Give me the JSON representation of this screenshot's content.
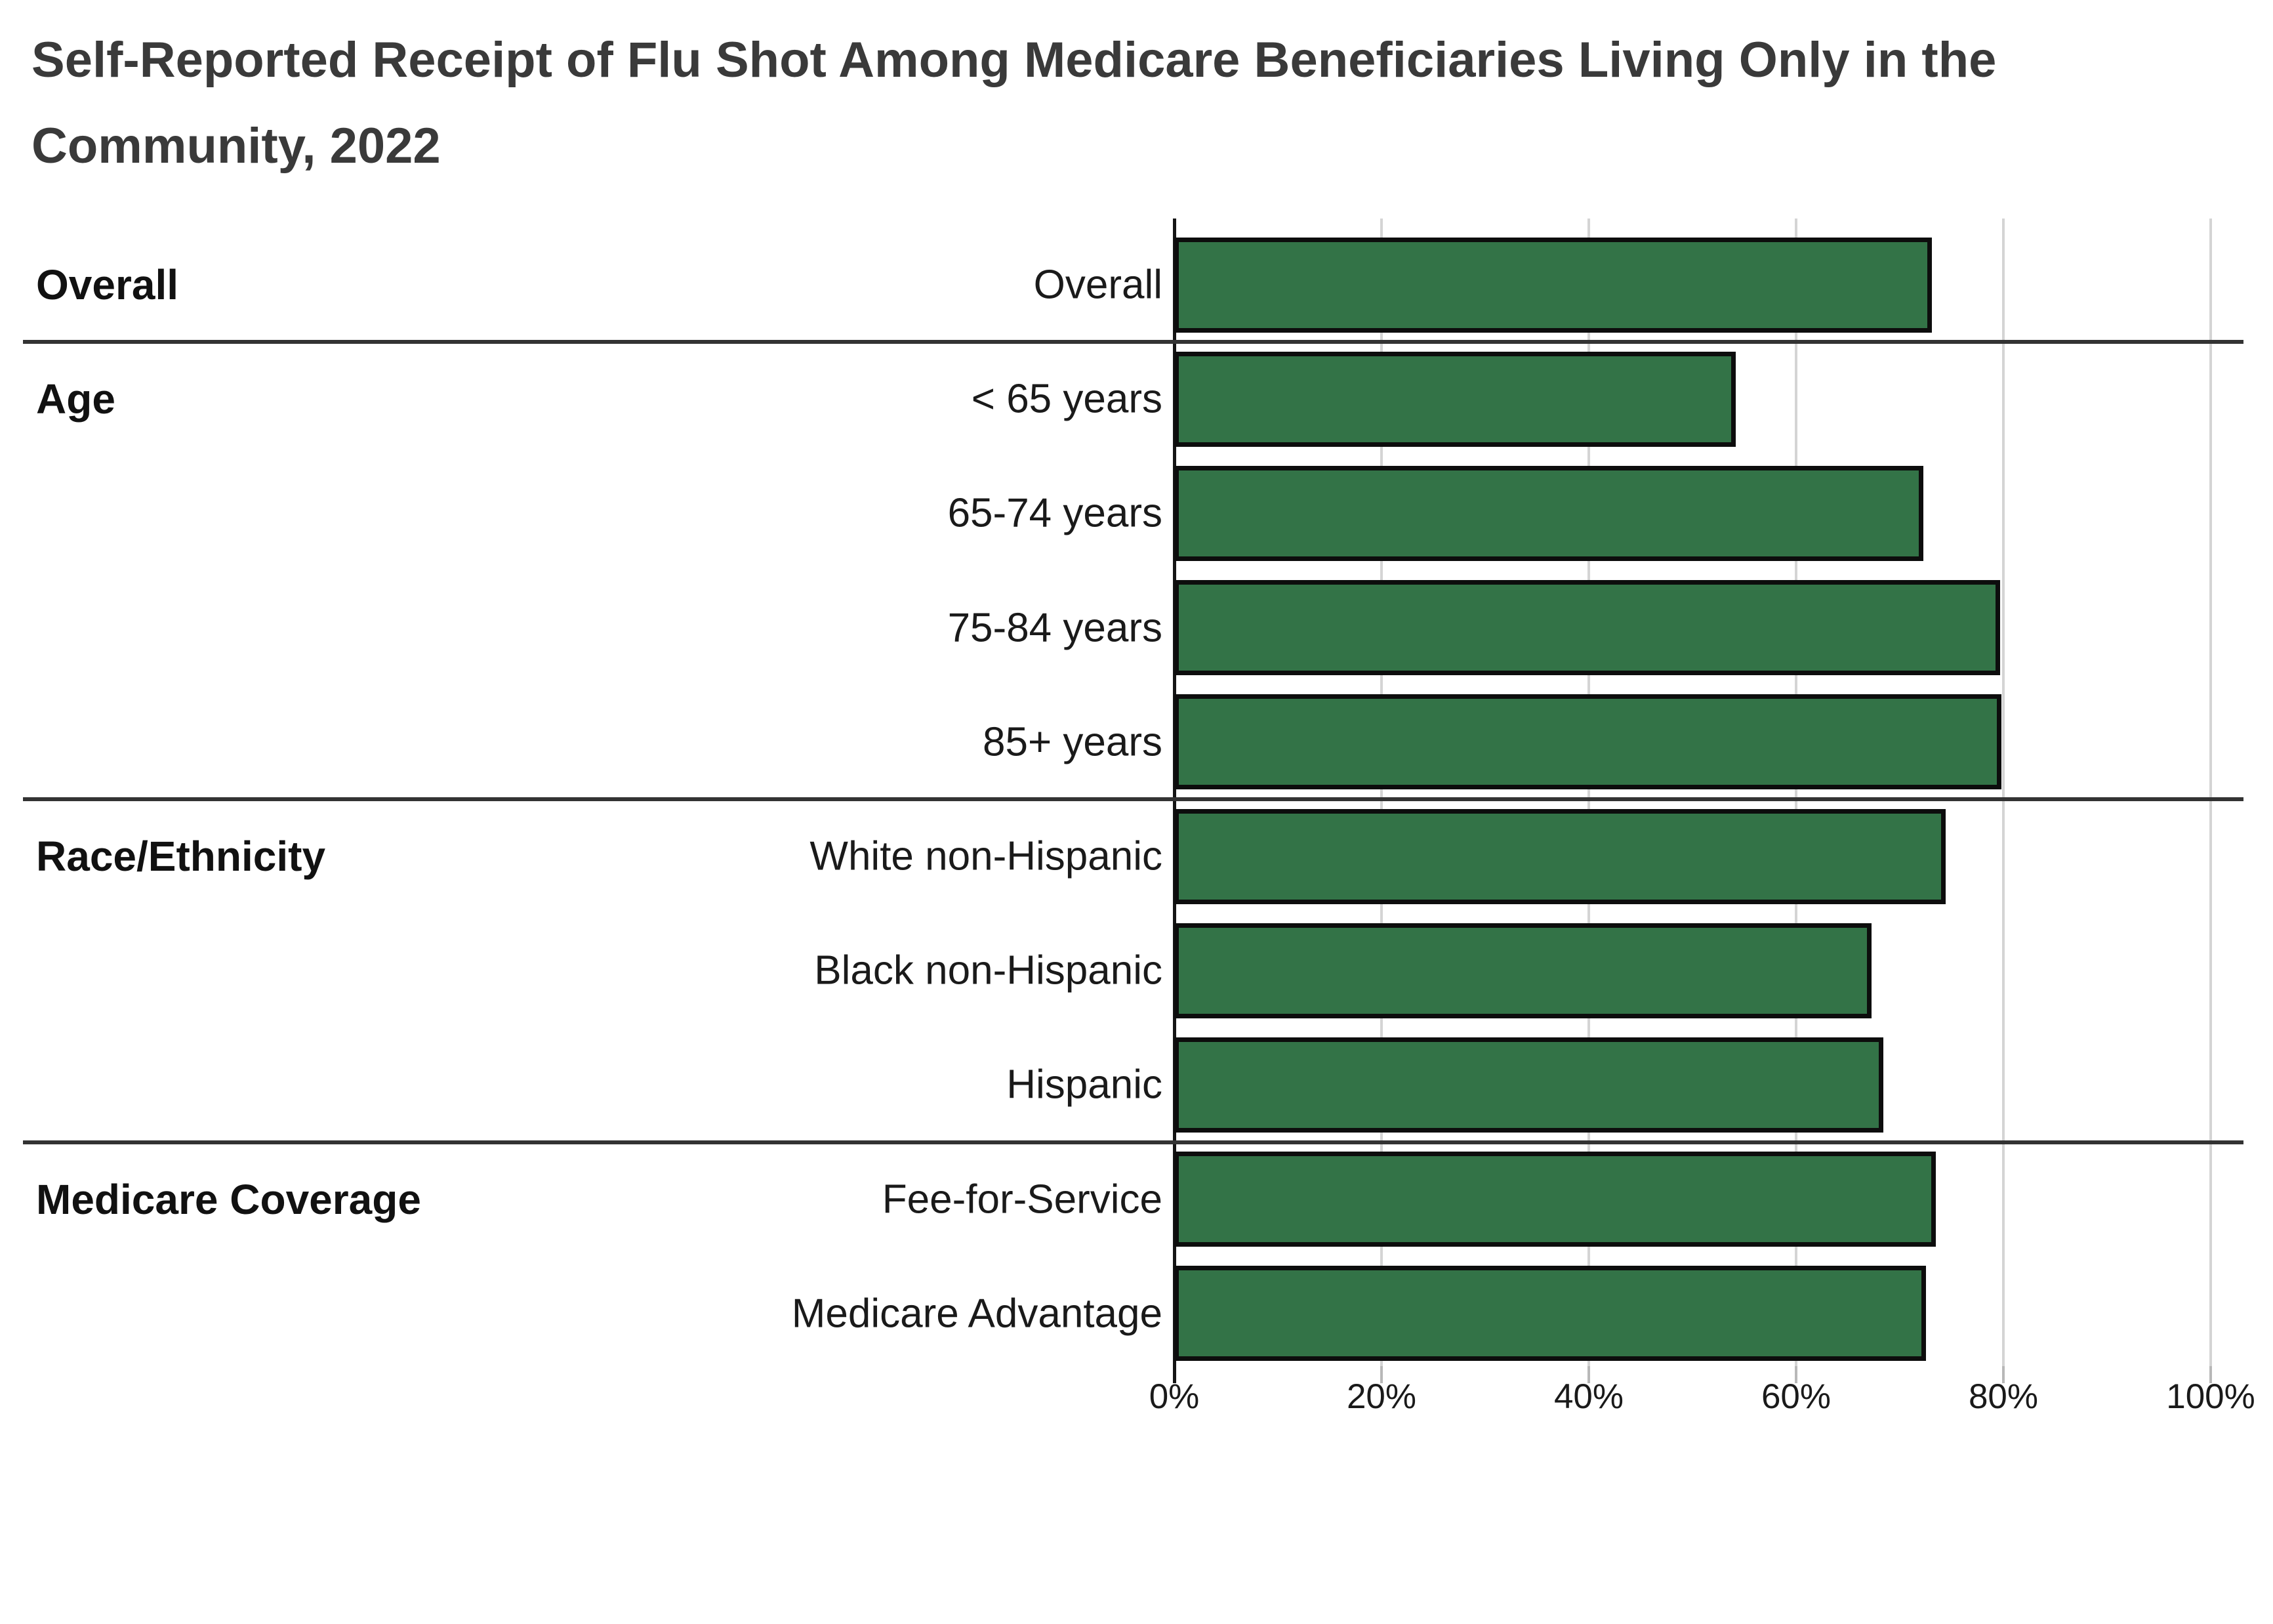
{
  "title": "Self-Reported Receipt of Flu Shot Among Medicare Beneficiaries Living Only in the Community, 2022",
  "title_lines": [
    "Self-Reported Receipt of Flu Shot Among Medicare Beneficiaries Living Only in the",
    "Community, 2022"
  ],
  "colors": {
    "bar_fill": "#337347",
    "bar_border": "#0d0d0d",
    "gridline": "#d4d4d4",
    "axis_line": "#151515",
    "divider": "#333333",
    "title_text": "#3a3a3a",
    "label_text": "#1a1a1a"
  },
  "chart_data": {
    "type": "bar",
    "orientation": "horizontal",
    "title": "Self-Reported Receipt of Flu Shot Among Medicare Beneficiaries Living Only in the Community, 2022",
    "xlabel": "",
    "ylabel": "",
    "unit": "percent",
    "xlim": [
      0,
      100
    ],
    "x_tick_values": [
      0,
      20,
      40,
      60,
      80,
      100
    ],
    "x_tick_labels": [
      "0%",
      "20%",
      "40%",
      "60%",
      "80%",
      "100%"
    ],
    "grid": true,
    "legend": "none",
    "groups": [
      {
        "label": "Overall",
        "rows": [
          {
            "label": "Overall",
            "value": 73.1
          }
        ]
      },
      {
        "label": "Age",
        "rows": [
          {
            "label": "< 65 years",
            "value": 54.2
          },
          {
            "label": "65-74 years",
            "value": 72.3
          },
          {
            "label": "75-84 years",
            "value": 79.7
          },
          {
            "label": "85+ years",
            "value": 79.8
          }
        ]
      },
      {
        "label": "Race/Ethnicity",
        "rows": [
          {
            "label": "White non-Hispanic",
            "value": 74.4
          },
          {
            "label": "Black non-Hispanic",
            "value": 67.3
          },
          {
            "label": "Hispanic",
            "value": 68.4
          }
        ]
      },
      {
        "label": "Medicare Coverage",
        "rows": [
          {
            "label": "Fee-for-Service",
            "value": 73.5
          },
          {
            "label": "Medicare Advantage",
            "value": 72.5
          }
        ]
      }
    ]
  }
}
